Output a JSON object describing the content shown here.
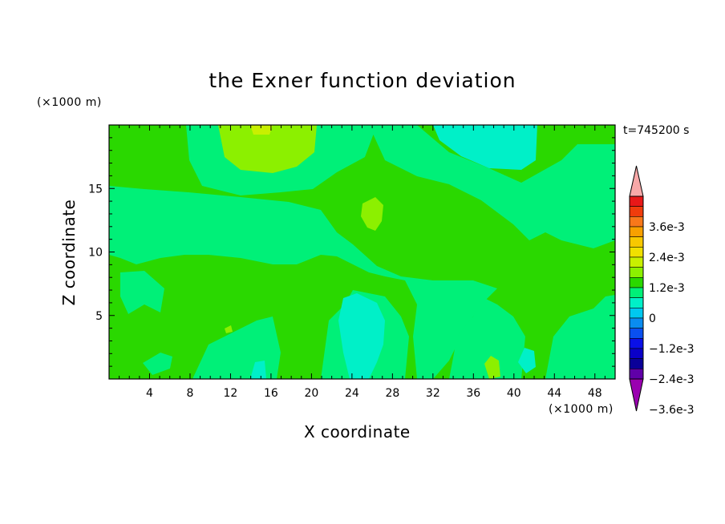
{
  "chart_data": {
    "type": "heatmap",
    "title": "the Exner function deviation",
    "xlabel": "X coordinate",
    "ylabel": "Z coordinate",
    "x_unit": "(×1000 m)",
    "z_unit": "(×1000 m)",
    "time_label": "t=745200 s",
    "xlim": [
      0,
      50
    ],
    "ylim": [
      0,
      20
    ],
    "x_ticks": [
      4,
      8,
      12,
      16,
      20,
      24,
      28,
      32,
      36,
      40,
      44,
      48
    ],
    "y_ticks": [
      5,
      10,
      15
    ],
    "colorbar": {
      "levels": [
        "3.6e-3",
        "2.4e-3",
        "1.2e-3",
        "0",
        "-1.2e-3",
        "-2.4e-3",
        "-3.6e-3"
      ],
      "colors": [
        "#f8a8a8",
        "#e81818",
        "#f03c0c",
        "#f8781a",
        "#f8a000",
        "#f8c800",
        "#f0e000",
        "#c8f000",
        "#8cf000",
        "#2ad800",
        "#00f078",
        "#00f0c8",
        "#00c8f0",
        "#0a8cf0",
        "#0a50f0",
        "#0a10e8",
        "#0a00c8",
        "#0a0098",
        "#6000a8",
        "#9a00b0"
      ],
      "extend": "both"
    },
    "field_description": "deviation values mostly near 0 (green) with small positive patches near top and small negative patches (teal) in columns",
    "features": [
      {
        "value_band": "0 to 1.2e-3",
        "x_range": [
          11,
          20
        ],
        "z_range": [
          16.5,
          20
        ]
      },
      {
        "value_band": "0 to 1.2e-3",
        "x_range": [
          24.5,
          27
        ],
        "z_range": [
          11.5,
          14
        ]
      },
      {
        "value_band": "0 to 1.2e-3",
        "x_range": [
          37,
          38.5
        ],
        "z_range": [
          0,
          1.8
        ]
      },
      {
        "value_band": "-1.2e-3 to 0",
        "x_range": [
          32,
          42
        ],
        "z_range": [
          16.5,
          20
        ]
      },
      {
        "value_band": "-1.2e-3 to 0",
        "x_range": [
          23,
          28
        ],
        "z_range": [
          0,
          6.5
        ]
      }
    ]
  }
}
